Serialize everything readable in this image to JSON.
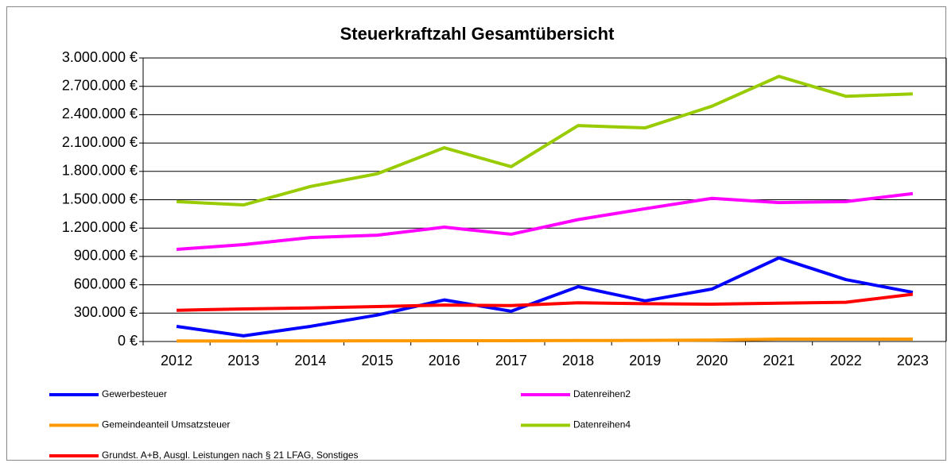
{
  "chart_data": {
    "type": "line",
    "title": "Steuerkraftzahl Gesamtübersicht",
    "categories": [
      "2012",
      "2013",
      "2014",
      "2015",
      "2016",
      "2017",
      "2018",
      "2019",
      "2020",
      "2021",
      "2022",
      "2023"
    ],
    "series": [
      {
        "name": "Gewerbesteuer",
        "color": "#0000ff",
        "values": [
          160000,
          60000,
          160000,
          280000,
          440000,
          320000,
          580000,
          430000,
          555000,
          885000,
          655000,
          520000
        ]
      },
      {
        "name": "Datenreihen2",
        "color": "#ff00ff",
        "values": [
          975000,
          1025000,
          1100000,
          1125000,
          1210000,
          1135000,
          1290000,
          1405000,
          1515000,
          1470000,
          1480000,
          1565000
        ]
      },
      {
        "name": "Gemeindeanteil Umsatzsteuer",
        "color": "#ff9900",
        "values": [
          5000,
          5000,
          6000,
          7000,
          8000,
          8000,
          10000,
          12000,
          15000,
          25000,
          25000,
          25000
        ]
      },
      {
        "name": "Datenreihen4",
        "color": "#99cc00",
        "values": [
          1480000,
          1445000,
          1640000,
          1775000,
          2050000,
          1850000,
          2285000,
          2260000,
          2490000,
          2805000,
          2595000,
          2620000
        ]
      },
      {
        "name": "Grundst. A+B, Ausgl. Leistungen nach § 21 LFAG, Sonstiges",
        "color": "#ff0000",
        "values": [
          330000,
          345000,
          355000,
          370000,
          385000,
          380000,
          410000,
          400000,
          395000,
          405000,
          415000,
          500000
        ]
      }
    ],
    "ylim": [
      0,
      3000000
    ],
    "yticks": [
      {
        "value": 0,
        "label": "0 €"
      },
      {
        "value": 300000,
        "label": "300.000 €"
      },
      {
        "value": 600000,
        "label": "600.000 €"
      },
      {
        "value": 900000,
        "label": "900.000 €"
      },
      {
        "value": 1200000,
        "label": "1.200.000 €"
      },
      {
        "value": 1500000,
        "label": "1.500.000 €"
      },
      {
        "value": 1800000,
        "label": "1.800.000 €"
      },
      {
        "value": 2100000,
        "label": "2.100.000 €"
      },
      {
        "value": 2400000,
        "label": "2.400.000 €"
      },
      {
        "value": 2700000,
        "label": "2.700.000 €"
      },
      {
        "value": 3000000,
        "label": "3.000.000 €"
      }
    ],
    "grid": true
  }
}
